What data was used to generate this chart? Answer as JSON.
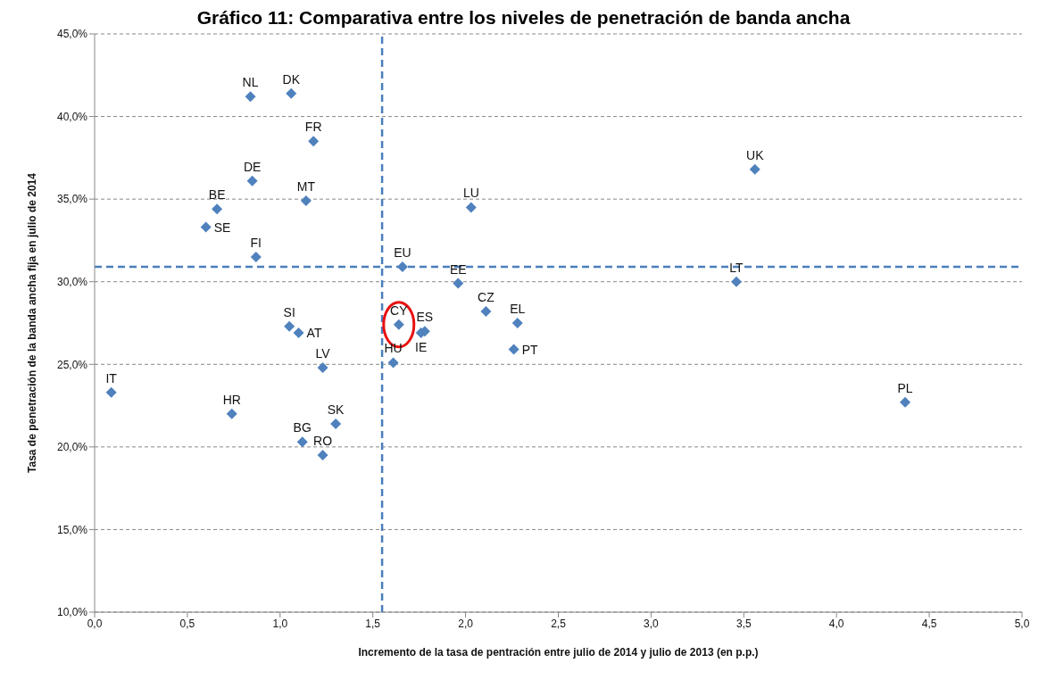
{
  "chart_data": {
    "type": "scatter",
    "title": "Gráfico 11: Comparativa entre los niveles de penetración de banda ancha",
    "xlabel": "Incremento de la tasa de pentración entre julio de 2014 y julio de 2013 (en p.p.)",
    "ylabel": "Tasa de penetración de la banda ancha fija en julio de 2014",
    "xlim": [
      0,
      5
    ],
    "xticks": [
      {
        "value": 0,
        "label": "0,0"
      },
      {
        "value": 0.5,
        "label": "0,5"
      },
      {
        "value": 1,
        "label": "1,0"
      },
      {
        "value": 1.5,
        "label": "1,5"
      },
      {
        "value": 2,
        "label": "2,0"
      },
      {
        "value": 2.5,
        "label": "2,5"
      },
      {
        "value": 3,
        "label": "3,0"
      },
      {
        "value": 3.5,
        "label": "3,5"
      },
      {
        "value": 4,
        "label": "4,0"
      },
      {
        "value": 4.5,
        "label": "4,5"
      },
      {
        "value": 5,
        "label": "5,0"
      }
    ],
    "ylim": [
      10,
      45
    ],
    "yticks": [
      {
        "value": 10,
        "label": "10,0%"
      },
      {
        "value": 15,
        "label": "15,0%"
      },
      {
        "value": 20,
        "label": "20,0%"
      },
      {
        "value": 25,
        "label": "25,0%"
      },
      {
        "value": 30,
        "label": "30,0%"
      },
      {
        "value": 35,
        "label": "35,0%"
      },
      {
        "value": 40,
        "label": "40,0%"
      },
      {
        "value": 45,
        "label": "45,0%"
      }
    ],
    "grid": "y",
    "marker": "diamond",
    "ref_lines": [
      {
        "axis": "x",
        "value": 1.55,
        "color": "#4a7ebb",
        "line_style": "dashed"
      },
      {
        "axis": "y",
        "value": 30.9,
        "color": "#4a7ebb",
        "line_style": "dashed"
      }
    ],
    "series": [
      {
        "name": "NL",
        "color": "#4f81bd",
        "x": [
          0.84
        ],
        "values": [
          41.2
        ]
      },
      {
        "name": "DK",
        "color": "#4f81bd",
        "x": [
          1.06
        ],
        "values": [
          41.4
        ]
      },
      {
        "name": "FR",
        "color": "#4f81bd",
        "x": [
          1.18
        ],
        "values": [
          38.5
        ]
      },
      {
        "name": "DE",
        "color": "#4f81bd",
        "x": [
          0.85
        ],
        "values": [
          36.1
        ]
      },
      {
        "name": "MT",
        "color": "#4f81bd",
        "x": [
          1.14
        ],
        "values": [
          34.9
        ]
      },
      {
        "name": "BE",
        "color": "#4f81bd",
        "x": [
          0.66
        ],
        "values": [
          34.4
        ]
      },
      {
        "name": "SE",
        "color": "#4f81bd",
        "x": [
          0.6
        ],
        "values": [
          33.3
        ]
      },
      {
        "name": "FI",
        "color": "#4f81bd",
        "x": [
          0.87
        ],
        "values": [
          31.5
        ]
      },
      {
        "name": "LU",
        "color": "#4f81bd",
        "x": [
          2.03
        ],
        "values": [
          34.5
        ]
      },
      {
        "name": "UK",
        "color": "#4f81bd",
        "x": [
          3.56
        ],
        "values": [
          36.8
        ]
      },
      {
        "name": "EU",
        "color": "#4f81bd",
        "x": [
          1.66
        ],
        "values": [
          30.9
        ]
      },
      {
        "name": "EE",
        "color": "#4f81bd",
        "x": [
          1.96
        ],
        "values": [
          29.9
        ]
      },
      {
        "name": "LT",
        "color": "#4f81bd",
        "x": [
          3.46
        ],
        "values": [
          30.0
        ]
      },
      {
        "name": "CZ",
        "color": "#4f81bd",
        "x": [
          2.11
        ],
        "values": [
          28.2
        ]
      },
      {
        "name": "EL",
        "color": "#4f81bd",
        "x": [
          2.28
        ],
        "values": [
          27.5
        ]
      },
      {
        "name": "CY",
        "color": "#4f81bd",
        "x": [
          1.64
        ],
        "values": [
          27.4
        ]
      },
      {
        "name": "ES",
        "color": "#4f81bd",
        "x": [
          1.78
        ],
        "values": [
          27.0
        ]
      },
      {
        "name": "IE",
        "color": "#4f81bd",
        "x": [
          1.76
        ],
        "values": [
          26.9
        ]
      },
      {
        "name": "PT",
        "color": "#4f81bd",
        "x": [
          2.26
        ],
        "values": [
          25.9
        ]
      },
      {
        "name": "HU",
        "color": "#4f81bd",
        "x": [
          1.61
        ],
        "values": [
          25.1
        ]
      },
      {
        "name": "SI",
        "color": "#4f81bd",
        "x": [
          1.05
        ],
        "values": [
          27.3
        ]
      },
      {
        "name": "AT",
        "color": "#4f81bd",
        "x": [
          1.1
        ],
        "values": [
          26.9
        ]
      },
      {
        "name": "LV",
        "color": "#4f81bd",
        "x": [
          1.23
        ],
        "values": [
          24.8
        ]
      },
      {
        "name": "IT",
        "color": "#4f81bd",
        "x": [
          0.09
        ],
        "values": [
          23.3
        ]
      },
      {
        "name": "HR",
        "color": "#4f81bd",
        "x": [
          0.74
        ],
        "values": [
          22.0
        ]
      },
      {
        "name": "SK",
        "color": "#4f81bd",
        "x": [
          1.3
        ],
        "values": [
          21.4
        ]
      },
      {
        "name": "BG",
        "color": "#4f81bd",
        "x": [
          1.12
        ],
        "values": [
          20.3
        ]
      },
      {
        "name": "RO",
        "color": "#4f81bd",
        "x": [
          1.23
        ],
        "values": [
          19.5
        ]
      },
      {
        "name": "PL",
        "color": "#4f81bd",
        "x": [
          4.37
        ],
        "values": [
          22.7
        ]
      }
    ]
  }
}
